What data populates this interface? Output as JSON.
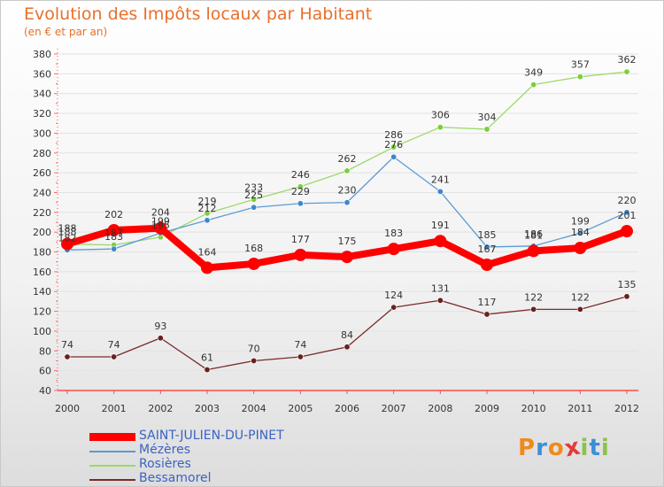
{
  "title": "Evolution des Impôts locaux par Habitant",
  "subtitle": "(en € et par an)",
  "logo": {
    "text": "Proxiti",
    "letters": [
      "P",
      "r",
      "o",
      "x",
      "i",
      "t",
      "i"
    ],
    "colors": [
      "#f08a1c",
      "#3b8fd9",
      "#f08a1c",
      "#e23a3a",
      "#8bc34a",
      "#3b8fd9",
      "#8bc34a"
    ]
  },
  "chart_data": {
    "type": "line",
    "title": "Evolution des Impôts locaux par Habitant",
    "subtitle": "(en € et par an)",
    "xlabel": "",
    "ylabel": "",
    "x": [
      "2000",
      "2001",
      "2002",
      "2003",
      "2004",
      "2005",
      "2006",
      "2007",
      "2008",
      "2009",
      "2010",
      "2011",
      "2012"
    ],
    "ylim": [
      40,
      380
    ],
    "yticks": [
      40,
      60,
      80,
      100,
      120,
      140,
      160,
      180,
      200,
      220,
      240,
      260,
      280,
      300,
      320,
      340,
      360,
      380
    ],
    "grid": "horizontal",
    "legend_position": "bottom-left",
    "series": [
      {
        "name": "SAINT-JULIEN-DU-PINET",
        "color": "#ff0000",
        "emphasis": true,
        "values": [
          188,
          202,
          204,
          164,
          168,
          177,
          175,
          183,
          191,
          167,
          181,
          184,
          201
        ],
        "labels": [
          "188",
          "202",
          "204",
          "164",
          "168",
          "177",
          "175",
          "183",
          "191",
          "167",
          "181",
          "184",
          "201"
        ]
      },
      {
        "name": "Mézères",
        "color": "#5b9bd5",
        "point_color": "#3f86cc",
        "values": [
          182,
          183,
          199,
          212,
          225,
          229,
          230,
          276,
          241,
          185,
          186,
          199,
          220
        ],
        "labels": [
          "182",
          "183",
          "199",
          "212",
          "225",
          "229",
          "230",
          "276",
          "241",
          "185",
          "186",
          "199",
          "220"
        ]
      },
      {
        "name": "Rosières",
        "color": "#9bd96b",
        "point_color": "#7ccf3a",
        "values": [
          188,
          187,
          195,
          219,
          233,
          246,
          262,
          286,
          306,
          304,
          349,
          357,
          362
        ],
        "labels": [
          "188",
          "187",
          "195",
          "219",
          "233",
          "246",
          "262",
          "286",
          "306",
          "304",
          "349",
          "357",
          "362"
        ]
      },
      {
        "name": "Bessamorel",
        "color": "#7a2a2a",
        "point_color": "#6b1f1f",
        "values": [
          74,
          74,
          93,
          61,
          70,
          74,
          84,
          124,
          131,
          117,
          122,
          122,
          135
        ],
        "labels": [
          "74",
          "74",
          "93",
          "61",
          "70",
          "74",
          "84",
          "124",
          "131",
          "117",
          "122",
          "122",
          "135"
        ]
      }
    ]
  }
}
